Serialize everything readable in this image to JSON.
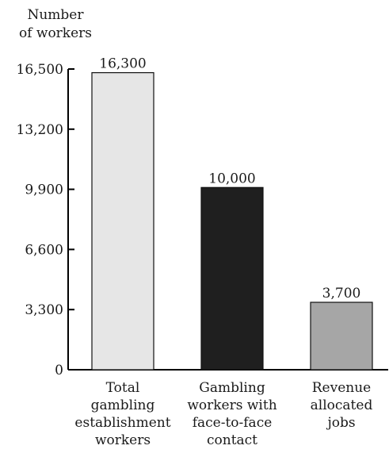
{
  "chart_data": {
    "type": "bar",
    "ylabel": [
      "Number",
      "of workers"
    ],
    "categories": [
      [
        "Total",
        "gambling",
        "establishment",
        "workers"
      ],
      [
        "Gambling",
        "workers with",
        "face-to-face",
        "contact"
      ],
      [
        "Revenue",
        "allocated",
        "jobs"
      ]
    ],
    "values": [
      16300,
      10000,
      3700
    ],
    "data_labels": [
      "16,300",
      "10,000",
      "3,700"
    ],
    "bar_colors": [
      "#e6e6e6",
      "#1f1f1f",
      "#a6a6a6"
    ],
    "ylim": [
      0,
      16500
    ],
    "yticks": [
      0,
      3300,
      6600,
      9900,
      13200,
      16500
    ],
    "ytick_labels": [
      "0",
      "3,300",
      "6,600",
      "9,900",
      "13,200",
      "16,500"
    ],
    "grid": false,
    "legend": "none"
  }
}
